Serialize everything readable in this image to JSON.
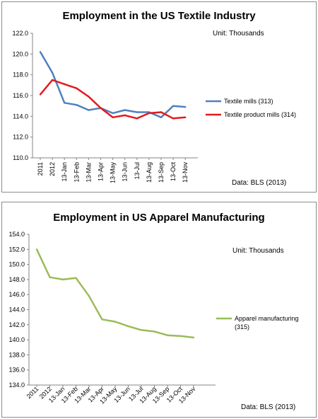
{
  "chart_data": [
    {
      "type": "line",
      "title": "Employment in the US Textile Industry",
      "unit_note": "Unit: Thousands",
      "source_note": "Data: BLS (2013)",
      "categories": [
        "2011",
        "2012",
        "13-Jan",
        "13-Feb",
        "13-Mar",
        "13-Apr",
        "13-May",
        "13-Jun",
        "13-Jul",
        "13-Aug",
        "13-Sep",
        "13-Oct",
        "13-Nov"
      ],
      "ylim": [
        110,
        122
      ],
      "yticks": [
        "110.0",
        "112.0",
        "114.0",
        "116.0",
        "118.0",
        "120.0",
        "122.0"
      ],
      "grid": false,
      "legend_position": "right",
      "series": [
        {
          "name": "Textile mills (313)",
          "color": "#4f81bd",
          "values": [
            120.2,
            118.2,
            115.3,
            115.1,
            114.6,
            114.8,
            114.3,
            114.6,
            114.4,
            114.4,
            113.9,
            115.0,
            114.9
          ]
        },
        {
          "name": "Textile product mills (314)",
          "color": "#e31a1c",
          "values": [
            116.1,
            117.5,
            117.1,
            116.7,
            115.9,
            114.8,
            113.9,
            114.1,
            113.8,
            114.3,
            114.4,
            113.8,
            113.9
          ]
        }
      ]
    },
    {
      "type": "line",
      "title": "Employment in US Apparel Manufacturing",
      "unit_note": "Unit: Thousands",
      "source_note": "Data: BLS (2013)",
      "categories": [
        "2011",
        "2012",
        "13-Jan",
        "13-Feb",
        "13-Mar",
        "13-Apr",
        "13-May",
        "13-Jun",
        "13-Jul",
        "13-Aug",
        "13-Sep",
        "13-Oct",
        "13-Nov"
      ],
      "ylim": [
        134,
        154
      ],
      "yticks": [
        "134.0",
        "136.0",
        "138.0",
        "140.0",
        "142.0",
        "144.0",
        "146.0",
        "148.0",
        "150.0",
        "152.0",
        "154.0"
      ],
      "grid": false,
      "legend_position": "right",
      "series": [
        {
          "name": "Apparel manufacturing (315)",
          "color": "#9bbb59",
          "values": [
            152.0,
            148.3,
            148.0,
            148.2,
            145.8,
            142.7,
            142.4,
            141.8,
            141.3,
            141.1,
            140.6,
            140.5,
            140.3
          ]
        }
      ]
    }
  ]
}
